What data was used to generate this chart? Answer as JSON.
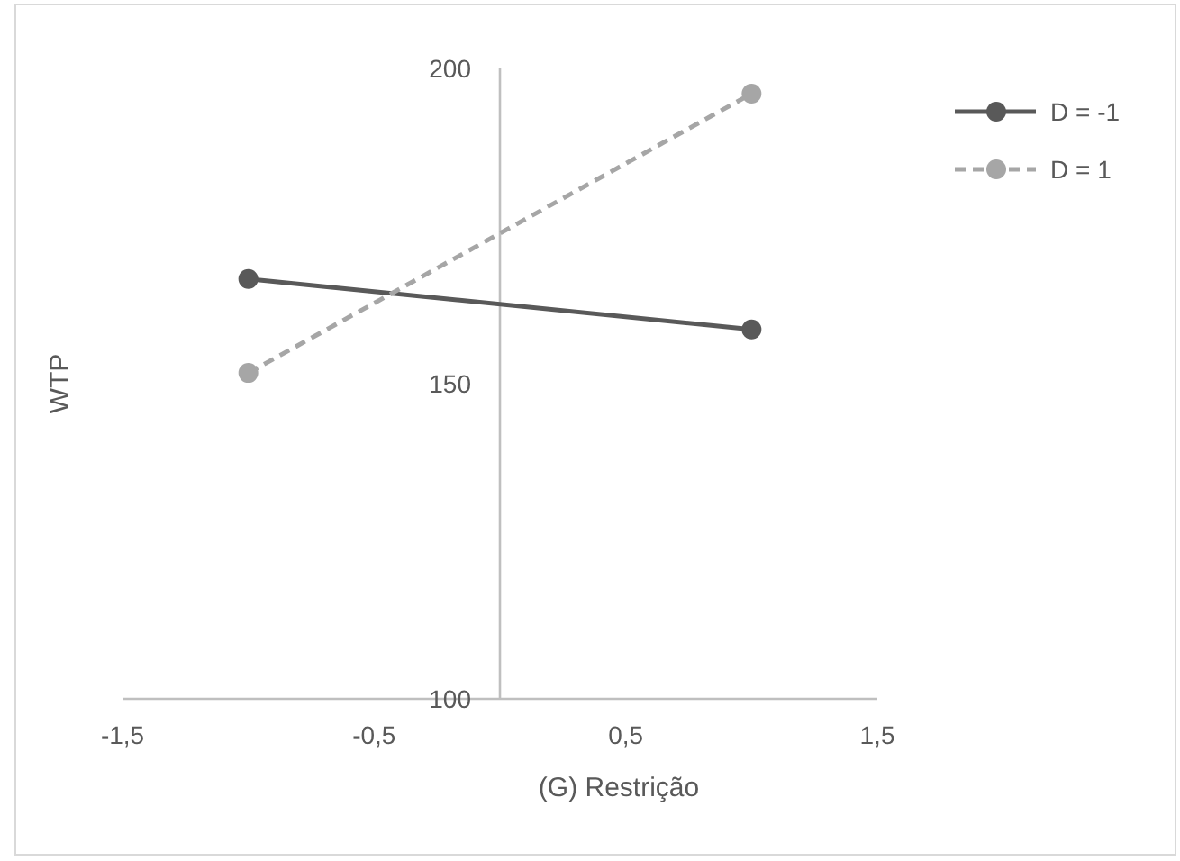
{
  "chart_data": {
    "type": "line",
    "xlabel": "(G) Restrição",
    "ylabel": "WTP",
    "x": [
      -1,
      1
    ],
    "series": [
      {
        "name": "D = -1",
        "color": "#595959",
        "values": [
          166.6,
          158.6
        ],
        "line_style": "solid"
      },
      {
        "name": "D = 1",
        "color": "#a6a6a6",
        "values": [
          151.7,
          196
        ],
        "line_style": "dashed"
      }
    ],
    "xlim": [
      -1.5,
      1.5
    ],
    "xticks": [
      {
        "value": -1.5,
        "label": "-1,5"
      },
      {
        "value": -0.5,
        "label": "-0,5"
      },
      {
        "value": 0.5,
        "label": "0,5"
      },
      {
        "value": 1.5,
        "label": "1,5"
      }
    ],
    "ylim": [
      100,
      200
    ],
    "yticks": [
      100,
      150,
      200
    ],
    "grid": false,
    "legend": "right",
    "marker": "circle"
  }
}
